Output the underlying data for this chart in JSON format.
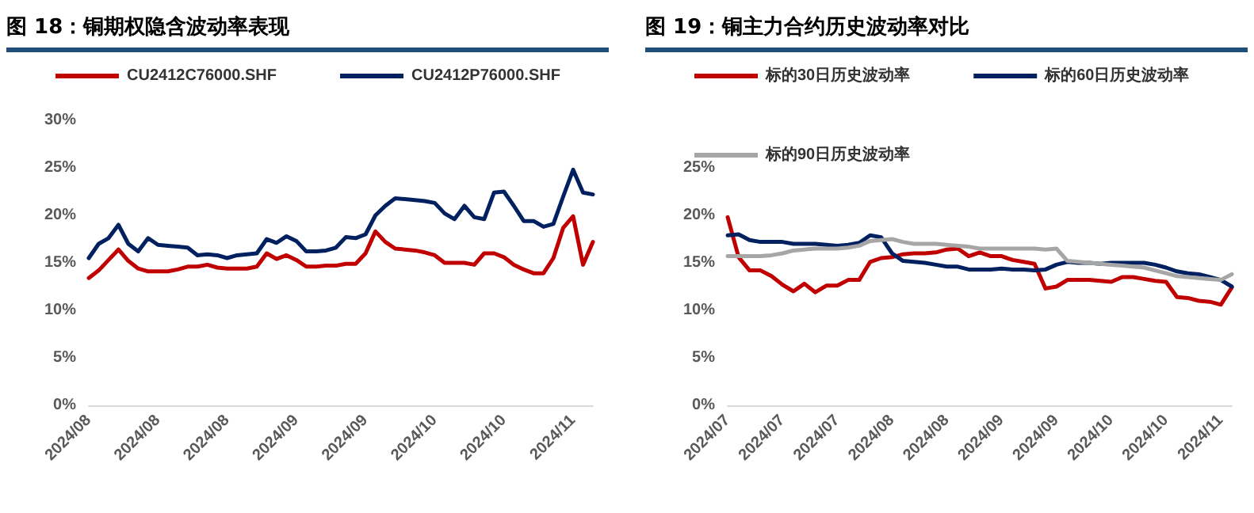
{
  "chart_data": [
    {
      "type": "line",
      "title": "图 18：铜期权隐含波动率表现",
      "legend": "top",
      "grid": false,
      "marker": "none",
      "line_style": "solid",
      "categories": [
        "2024/08",
        null,
        null,
        null,
        null,
        null,
        null,
        "2024/08",
        null,
        null,
        null,
        null,
        null,
        null,
        "2024/08",
        null,
        null,
        null,
        null,
        null,
        null,
        "2024/09",
        null,
        null,
        null,
        null,
        null,
        null,
        "2024/09",
        null,
        null,
        null,
        null,
        null,
        null,
        "2024/10",
        null,
        null,
        null,
        null,
        null,
        null,
        "2024/10",
        null,
        null,
        null,
        null,
        null,
        null,
        "2024/11",
        null,
        null
      ],
      "ylim": [
        0,
        30
      ],
      "yticks": [
        {
          "value": 0,
          "label": "0%"
        },
        {
          "value": 5,
          "label": "5%"
        },
        {
          "value": 10,
          "label": "10%"
        },
        {
          "value": 15,
          "label": "15%"
        },
        {
          "value": 20,
          "label": "20%"
        },
        {
          "value": 25,
          "label": "25%"
        },
        {
          "value": 30,
          "label": "30%"
        }
      ],
      "series": [
        {
          "name": "CU2412C76000.SHF",
          "color": "#c00000",
          "values": [
            13.4,
            14.2,
            15.3,
            16.4,
            15.2,
            14.4,
            14.1,
            14.1,
            14.1,
            14.3,
            14.6,
            14.6,
            14.8,
            14.5,
            14.4,
            14.4,
            14.4,
            14.6,
            16.0,
            15.4,
            15.8,
            15.3,
            14.6,
            14.6,
            14.7,
            14.7,
            14.9,
            14.9,
            16.0,
            18.3,
            17.2,
            16.5,
            16.4,
            16.3,
            16.1,
            15.8,
            15.0,
            15.0,
            15.0,
            14.8,
            16.0,
            16.0,
            15.6,
            14.8,
            14.3,
            13.9,
            13.9,
            15.5,
            18.7,
            19.9,
            14.8,
            17.2
          ]
        },
        {
          "name": "CU2412P76000.SHF",
          "color": "#002060",
          "values": [
            15.5,
            17.0,
            17.6,
            19.0,
            17.0,
            16.2,
            17.6,
            16.9,
            16.8,
            16.7,
            16.6,
            15.8,
            15.9,
            15.8,
            15.5,
            15.8,
            15.9,
            16.0,
            17.5,
            17.1,
            17.8,
            17.3,
            16.2,
            16.2,
            16.3,
            16.6,
            17.7,
            17.6,
            18.0,
            20.0,
            21.0,
            21.8,
            21.7,
            21.6,
            21.5,
            21.3,
            20.2,
            19.6,
            21.0,
            19.8,
            19.6,
            22.4,
            22.5,
            21.0,
            19.4,
            19.4,
            18.8,
            19.1,
            22.0,
            24.8,
            22.4,
            22.2
          ]
        }
      ]
    },
    {
      "type": "line",
      "title": "图 19：铜主力合约历史波动率对比",
      "legend": "top",
      "grid": false,
      "marker": "none",
      "line_style": "solid",
      "categories": [
        "2024/07",
        null,
        null,
        null,
        null,
        "2024/07",
        null,
        null,
        null,
        null,
        "2024/07",
        null,
        null,
        null,
        null,
        "2024/08",
        null,
        null,
        null,
        null,
        "2024/08",
        null,
        null,
        null,
        null,
        "2024/09",
        null,
        null,
        null,
        null,
        "2024/09",
        null,
        null,
        null,
        null,
        "2024/10",
        null,
        null,
        null,
        null,
        "2024/10",
        null,
        null,
        null,
        null,
        "2024/11",
        null
      ],
      "ylim": [
        0,
        25
      ],
      "yticks": [
        {
          "value": 0,
          "label": "0%"
        },
        {
          "value": 5,
          "label": "5%"
        },
        {
          "value": 10,
          "label": "10%"
        },
        {
          "value": 15,
          "label": "15%"
        },
        {
          "value": 20,
          "label": "20%"
        },
        {
          "value": 25,
          "label": "25%"
        }
      ],
      "series": [
        {
          "name": "标的30日历史波动率",
          "color": "#c00000",
          "values": [
            19.8,
            15.6,
            14.2,
            14.2,
            13.6,
            12.7,
            12.0,
            12.8,
            11.9,
            12.6,
            12.6,
            13.2,
            13.2,
            15.1,
            15.5,
            15.6,
            15.9,
            16.0,
            16.0,
            16.1,
            16.4,
            16.5,
            15.7,
            16.1,
            15.7,
            15.7,
            15.3,
            15.1,
            14.9,
            12.3,
            12.5,
            13.2,
            13.2,
            13.2,
            13.1,
            13.0,
            13.5,
            13.5,
            13.3,
            13.1,
            13.0,
            11.4,
            11.3,
            11.0,
            10.9,
            10.6,
            12.4
          ]
        },
        {
          "name": "标的60日历史波动率",
          "color": "#002060",
          "values": [
            17.9,
            18.0,
            17.4,
            17.2,
            17.2,
            17.2,
            17.0,
            17.0,
            17.0,
            16.9,
            16.8,
            16.9,
            17.1,
            17.9,
            17.7,
            16.0,
            15.2,
            15.1,
            15.0,
            14.8,
            14.6,
            14.6,
            14.3,
            14.3,
            14.3,
            14.4,
            14.3,
            14.3,
            14.2,
            14.3,
            14.8,
            15.1,
            15.0,
            15.0,
            14.9,
            15.0,
            15.0,
            15.0,
            15.0,
            14.8,
            14.5,
            14.1,
            13.9,
            13.8,
            13.5,
            13.2,
            12.5
          ]
        },
        {
          "name": "标的90日历史波动率",
          "color": "#a6a6a6",
          "values": [
            15.7,
            15.7,
            15.7,
            15.7,
            15.8,
            16.0,
            16.3,
            16.4,
            16.5,
            16.5,
            16.5,
            16.6,
            16.8,
            17.3,
            17.4,
            17.5,
            17.2,
            17.0,
            17.0,
            17.0,
            16.9,
            16.8,
            16.7,
            16.5,
            16.5,
            16.5,
            16.5,
            16.5,
            16.5,
            16.4,
            16.5,
            15.2,
            15.1,
            15.0,
            14.9,
            14.8,
            14.7,
            14.6,
            14.5,
            14.2,
            13.9,
            13.6,
            13.5,
            13.4,
            13.3,
            13.2,
            13.8
          ]
        }
      ]
    }
  ]
}
